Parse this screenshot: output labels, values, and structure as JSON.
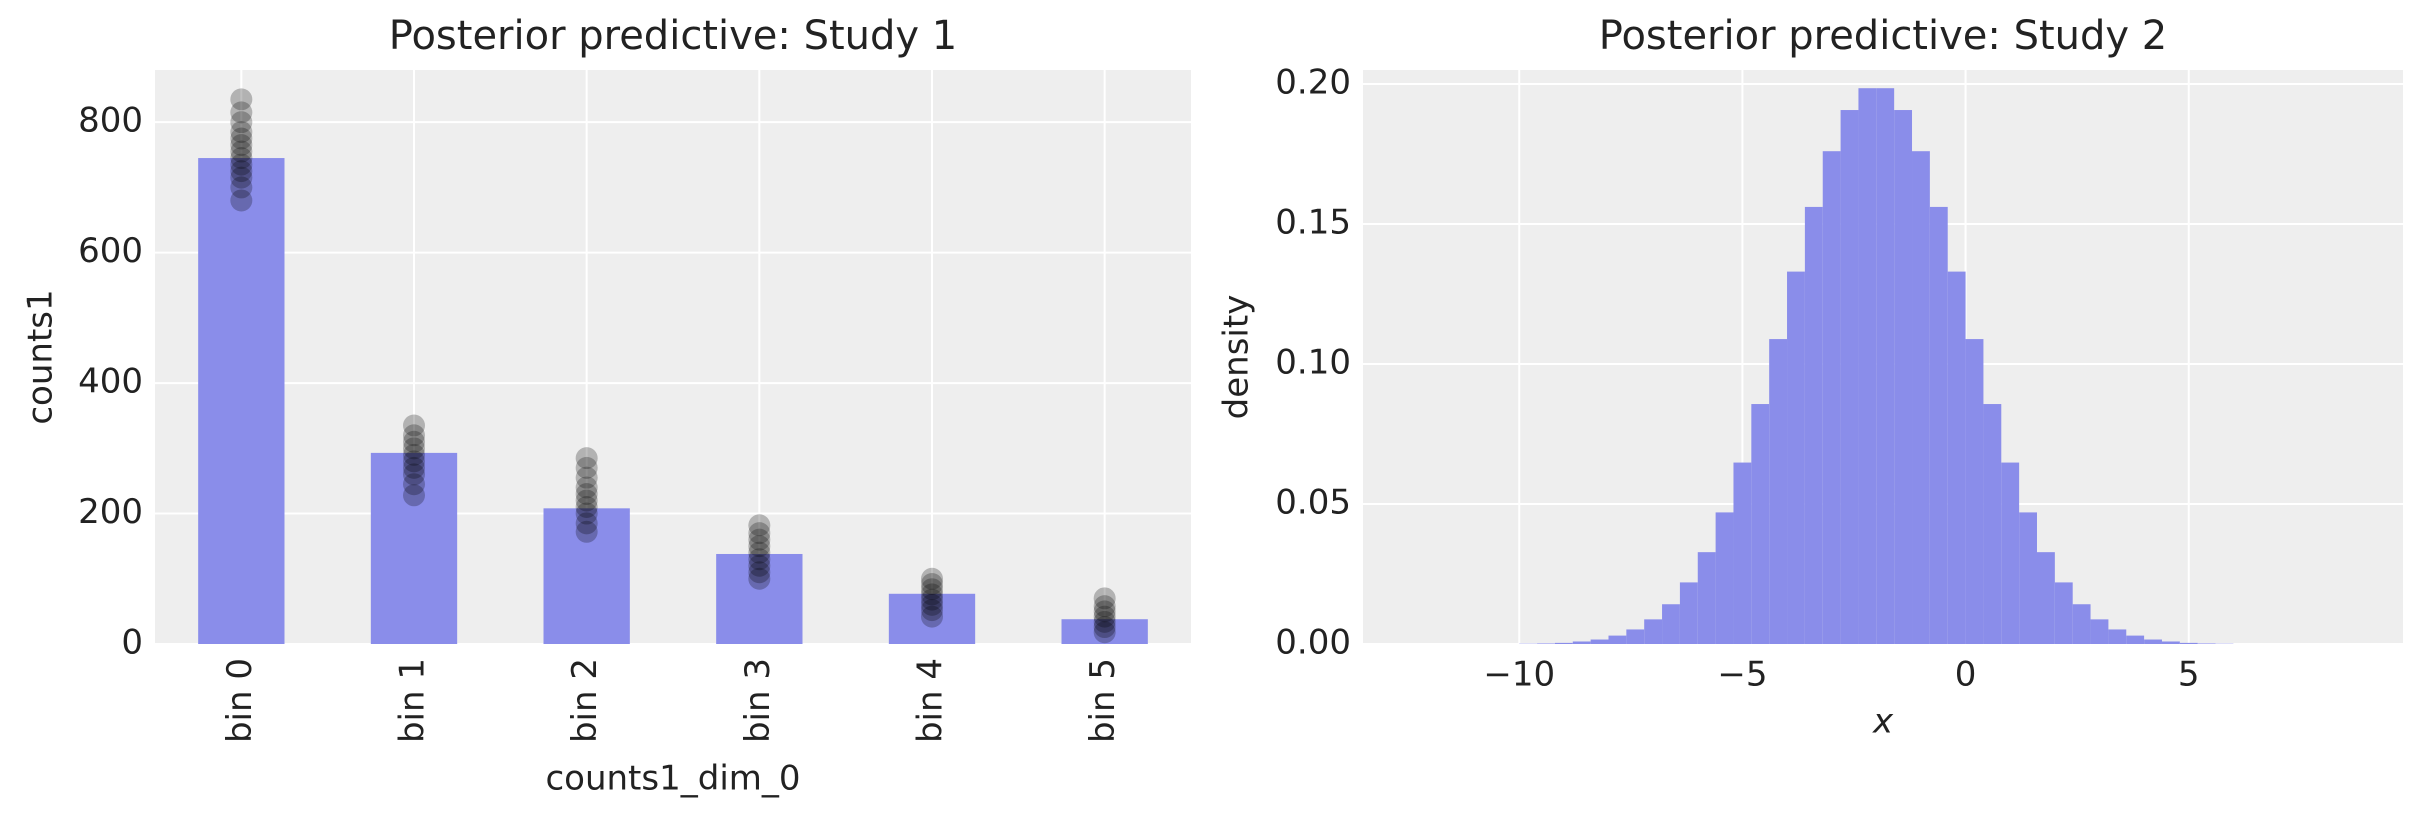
{
  "chart_data": [
    {
      "type": "bar",
      "title": "Posterior predictive: Study 1",
      "xlabel": "counts1_dim_0",
      "ylabel": "counts1",
      "categories": [
        "bin 0",
        "bin 1",
        "bin 2",
        "bin 3",
        "bin 4",
        "bin 5"
      ],
      "values": [
        745,
        293,
        208,
        138,
        77,
        38
      ],
      "color": "#8a8dea",
      "points": [
        [
          680,
          700,
          715,
          725,
          735,
          745,
          755,
          765,
          775,
          785,
          800,
          815,
          835
        ],
        [
          228,
          245,
          260,
          270,
          280,
          290,
          300,
          310,
          320,
          335
        ],
        [
          172,
          185,
          200,
          210,
          220,
          230,
          240,
          255,
          270,
          285
        ],
        [
          100,
          110,
          120,
          130,
          140,
          150,
          160,
          170,
          182
        ],
        [
          42,
          52,
          60,
          68,
          76,
          84,
          92,
          100
        ],
        [
          18,
          26,
          34,
          42,
          50,
          58,
          70
        ]
      ],
      "points_color": "#000000",
      "ylim": [
        0,
        880
      ],
      "yticks": [
        0,
        200,
        400,
        600,
        800
      ],
      "grid": true
    },
    {
      "type": "histogram",
      "title": "Posterior predictive: Study 2",
      "xlabel": "x",
      "ylabel": "density",
      "bins": [
        -10,
        -9.6,
        -9.2,
        -8.8,
        -8.4,
        -8,
        -7.6,
        -7.2,
        -6.8,
        -6.4,
        -6,
        -5.6,
        -5.2,
        -4.8,
        -4.4,
        -4,
        -3.6,
        -3.2,
        -2.8,
        -2.4,
        -2,
        -1.6,
        -1.2,
        -0.8,
        -0.4,
        0,
        0.4,
        0.8,
        1.2,
        1.6,
        2,
        2.4,
        2.8,
        3.2,
        3.6,
        4,
        4.4,
        4.8,
        5.2,
        5.6,
        6
      ],
      "values": [
        0.0001,
        0.0002,
        0.0004,
        0.0009,
        0.0016,
        0.003,
        0.0052,
        0.0088,
        0.0142,
        0.022,
        0.0328,
        0.047,
        0.0648,
        0.0857,
        0.1089,
        0.133,
        0.1561,
        0.176,
        0.1907,
        0.1985,
        0.1985,
        0.1907,
        0.176,
        0.1561,
        0.133,
        0.1089,
        0.0857,
        0.0648,
        0.047,
        0.0328,
        0.022,
        0.0142,
        0.0088,
        0.0052,
        0.003,
        0.0016,
        0.0009,
        0.0004,
        0.0002,
        0.0001
      ],
      "color": "#8a8dea",
      "xlim": [
        -13.5,
        9.8
      ],
      "xticks": [
        {
          "value": -10,
          "label": "−10"
        },
        {
          "value": -5,
          "label": "−5"
        },
        0,
        5
      ],
      "ylim": [
        0,
        0.205
      ],
      "yticks": [
        {
          "value": 0,
          "label": "0.00"
        },
        {
          "value": 0.05,
          "label": "0.05"
        },
        {
          "value": 0.1,
          "label": "0.10"
        },
        {
          "value": 0.15,
          "label": "0.15"
        },
        {
          "value": 0.2,
          "label": "0.20"
        }
      ],
      "grid": true
    }
  ]
}
